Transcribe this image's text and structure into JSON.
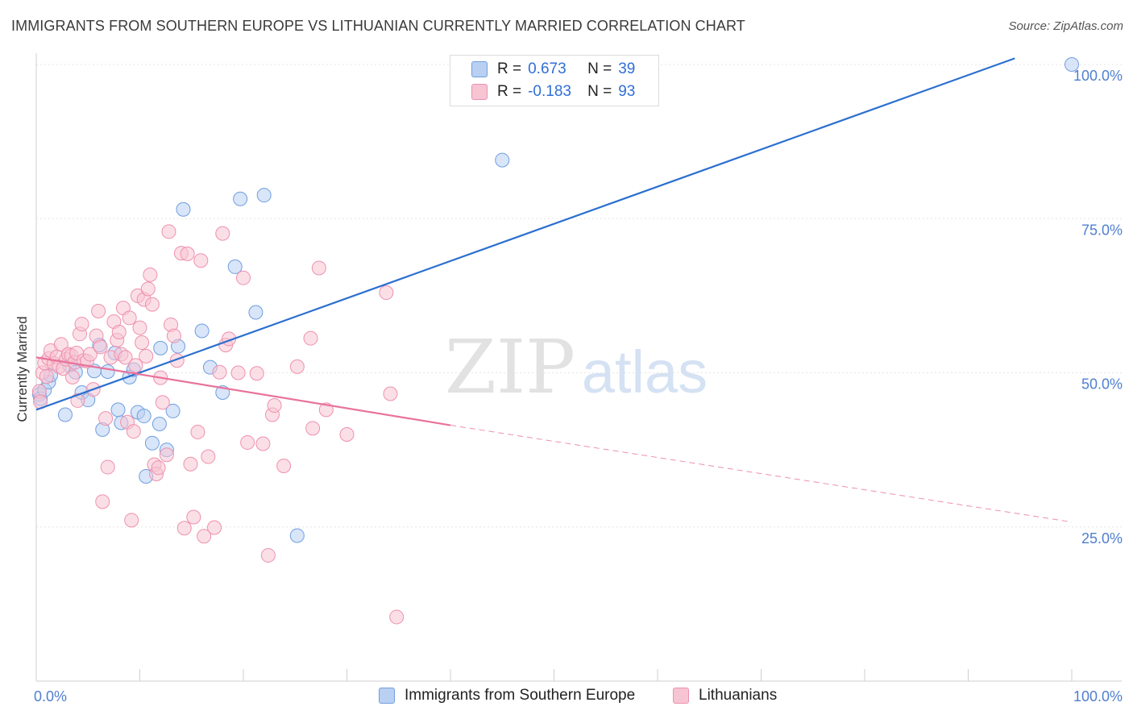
{
  "header": {
    "title": "IMMIGRANTS FROM SOUTHERN EUROPE VS LITHUANIAN CURRENTLY MARRIED CORRELATION CHART",
    "source": "Source: ZipAtlas.com"
  },
  "watermark": {
    "zip": "ZIP",
    "atlas": "atlas"
  },
  "legend": {
    "r_label": "R =",
    "n_label": "N =",
    "rows": [
      {
        "r": "0.673",
        "n": "39"
      },
      {
        "r": "-0.183",
        "n": "93"
      }
    ]
  },
  "colors": {
    "blue_fill": "#b9d0f2",
    "blue_stroke": "#6f9fe0",
    "blue_line": "#2b6fcf",
    "pink_fill": "#f7c4d4",
    "pink_stroke": "#ee91ad",
    "pink_line": "#e8739c",
    "tick_text": "#4f7fd1"
  },
  "chart_data": {
    "type": "scatter",
    "title": "IMMIGRANTS FROM SOUTHERN EUROPE VS LITHUANIAN CURRENTLY MARRIED CORRELATION CHART",
    "xlabel": "",
    "ylabel": "Currently Married",
    "xlim": [
      0,
      100
    ],
    "ylim": [
      0,
      105
    ],
    "x_tick_labels": [
      "0.0%",
      "100.0%"
    ],
    "y_ticks": [
      25,
      50,
      75,
      100
    ],
    "y_tick_labels": [
      "25.0%",
      "50.0%",
      "75.0%",
      "100.0%"
    ],
    "grid": true,
    "legend_position": "top-center",
    "series": [
      {
        "name": "Immigrants from Southern Europe",
        "color": "#6f9fe0",
        "r": 0.673,
        "n": 39,
        "trend": {
          "x0": 0,
          "y0": 44,
          "x1": 94.5,
          "y1": 101,
          "dashed_to": null
        },
        "points": [
          [
            0.3,
            46.5
          ],
          [
            0.4,
            45.8
          ],
          [
            0.8,
            47.2
          ],
          [
            1.2,
            48.5
          ],
          [
            1.4,
            49.6
          ],
          [
            2.8,
            43.2
          ],
          [
            3.2,
            51.2
          ],
          [
            3.8,
            50.1
          ],
          [
            4.4,
            46.8
          ],
          [
            5.0,
            45.6
          ],
          [
            5.6,
            50.3
          ],
          [
            6.1,
            54.5
          ],
          [
            6.4,
            40.8
          ],
          [
            6.9,
            50.2
          ],
          [
            7.6,
            53.2
          ],
          [
            7.9,
            44.0
          ],
          [
            8.2,
            41.9
          ],
          [
            9.0,
            49.3
          ],
          [
            9.4,
            50.5
          ],
          [
            9.8,
            43.6
          ],
          [
            10.4,
            43.0
          ],
          [
            10.6,
            33.2
          ],
          [
            11.2,
            38.6
          ],
          [
            11.9,
            41.7
          ],
          [
            12.0,
            54.0
          ],
          [
            12.6,
            37.5
          ],
          [
            13.2,
            43.8
          ],
          [
            13.7,
            54.3
          ],
          [
            14.2,
            76.5
          ],
          [
            16.0,
            56.8
          ],
          [
            16.8,
            50.9
          ],
          [
            18.0,
            46.8
          ],
          [
            19.2,
            67.2
          ],
          [
            19.7,
            78.2
          ],
          [
            21.2,
            59.8
          ],
          [
            22.0,
            78.8
          ],
          [
            25.2,
            23.6
          ],
          [
            45.0,
            84.5
          ],
          [
            100.0,
            100.0
          ]
        ]
      },
      {
        "name": "Lithuanians",
        "color": "#ee91ad",
        "r": -0.183,
        "n": 93,
        "trend": {
          "x0": 0,
          "y0": 52.5,
          "x1": 40,
          "y1": 41.5,
          "dashed_to": {
            "x": 100,
            "y": 25.8
          }
        },
        "points": [
          [
            0.3,
            47.0
          ],
          [
            0.4,
            45.3
          ],
          [
            0.6,
            50.0
          ],
          [
            0.8,
            51.6
          ],
          [
            1.0,
            49.4
          ],
          [
            1.2,
            52.3
          ],
          [
            1.4,
            53.6
          ],
          [
            1.7,
            51.5
          ],
          [
            2.0,
            52.6
          ],
          [
            2.2,
            51.0
          ],
          [
            2.4,
            54.6
          ],
          [
            2.6,
            50.7
          ],
          [
            2.9,
            52.2
          ],
          [
            3.1,
            53.0
          ],
          [
            3.4,
            52.8
          ],
          [
            3.5,
            49.3
          ],
          [
            3.7,
            51.7
          ],
          [
            3.9,
            53.2
          ],
          [
            4.0,
            45.5
          ],
          [
            4.2,
            56.3
          ],
          [
            4.4,
            57.9
          ],
          [
            4.6,
            52.0
          ],
          [
            4.9,
            51.9
          ],
          [
            5.2,
            53.0
          ],
          [
            5.5,
            47.3
          ],
          [
            5.8,
            56.0
          ],
          [
            6.0,
            60.0
          ],
          [
            6.2,
            54.2
          ],
          [
            6.4,
            29.1
          ],
          [
            6.7,
            42.6
          ],
          [
            6.9,
            34.7
          ],
          [
            7.2,
            52.5
          ],
          [
            7.5,
            58.3
          ],
          [
            7.8,
            55.3
          ],
          [
            8.0,
            56.6
          ],
          [
            8.2,
            53.0
          ],
          [
            8.4,
            60.5
          ],
          [
            8.6,
            52.5
          ],
          [
            8.8,
            42.0
          ],
          [
            9.0,
            58.9
          ],
          [
            9.2,
            26.1
          ],
          [
            9.4,
            40.5
          ],
          [
            9.6,
            51.2
          ],
          [
            9.8,
            62.5
          ],
          [
            10.0,
            57.3
          ],
          [
            10.2,
            54.9
          ],
          [
            10.4,
            61.9
          ],
          [
            10.6,
            52.7
          ],
          [
            10.8,
            63.6
          ],
          [
            11.0,
            65.9
          ],
          [
            11.2,
            61.1
          ],
          [
            11.4,
            35.1
          ],
          [
            11.6,
            33.6
          ],
          [
            11.8,
            34.6
          ],
          [
            12.0,
            49.2
          ],
          [
            12.2,
            45.2
          ],
          [
            12.6,
            36.7
          ],
          [
            12.8,
            72.9
          ],
          [
            13.0,
            57.8
          ],
          [
            13.3,
            56.0
          ],
          [
            13.6,
            52.0
          ],
          [
            14.0,
            69.4
          ],
          [
            14.3,
            24.8
          ],
          [
            14.6,
            69.3
          ],
          [
            14.9,
            35.2
          ],
          [
            15.2,
            26.6
          ],
          [
            15.6,
            40.4
          ],
          [
            15.9,
            68.2
          ],
          [
            16.2,
            23.5
          ],
          [
            16.6,
            36.4
          ],
          [
            17.2,
            24.9
          ],
          [
            17.7,
            50.1
          ],
          [
            18.0,
            72.6
          ],
          [
            18.3,
            54.5
          ],
          [
            18.6,
            55.5
          ],
          [
            19.5,
            50.0
          ],
          [
            20.0,
            65.4
          ],
          [
            20.4,
            38.7
          ],
          [
            21.3,
            49.9
          ],
          [
            21.9,
            38.5
          ],
          [
            22.4,
            20.4
          ],
          [
            22.8,
            43.2
          ],
          [
            23.0,
            44.7
          ],
          [
            23.9,
            34.9
          ],
          [
            25.2,
            51.0
          ],
          [
            26.5,
            55.6
          ],
          [
            27.3,
            67.0
          ],
          [
            33.8,
            63.0
          ],
          [
            34.8,
            10.4
          ],
          [
            34.2,
            46.6
          ],
          [
            26.7,
            41.0
          ],
          [
            30.0,
            40.0
          ],
          [
            28.0,
            44.0
          ]
        ]
      }
    ]
  },
  "bottom_legend": [
    {
      "label": "Immigrants from Southern Europe"
    },
    {
      "label": "Lithuanians"
    }
  ]
}
